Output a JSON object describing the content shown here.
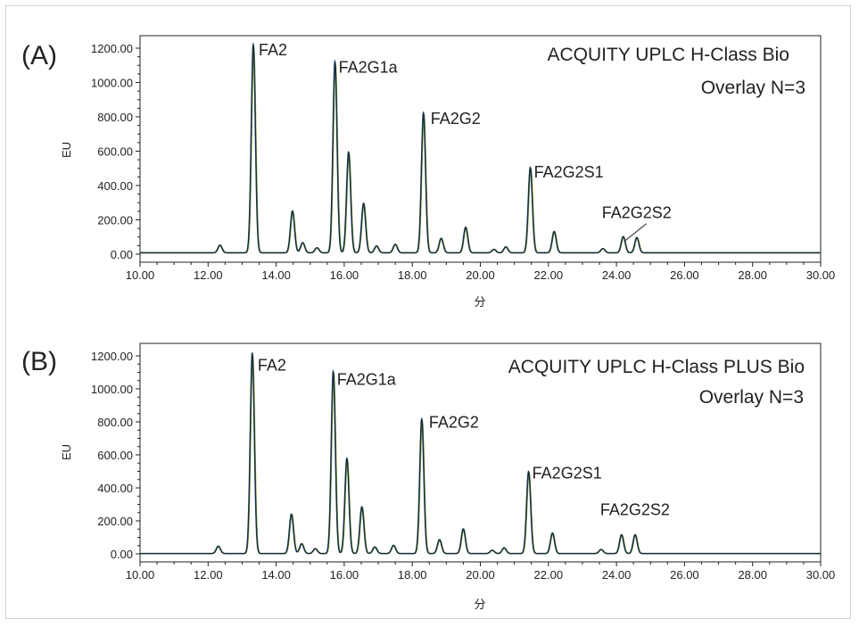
{
  "chart_data": [
    {
      "type": "line",
      "panel_label": "(A)",
      "instrument": "ACQUITY UPLC H-Class Bio",
      "overlay": "Overlay N=3",
      "xlabel": "分",
      "ylabel": "EU",
      "xlim": [
        10.0,
        30.0
      ],
      "ylim": [
        0,
        1200
      ],
      "x_ticks": [
        "10.00",
        "12.00",
        "14.00",
        "16.00",
        "18.00",
        "20.00",
        "22.00",
        "24.00",
        "26.00",
        "28.00",
        "30.00"
      ],
      "y_ticks": [
        "0.00",
        "200.00",
        "400.00",
        "600.00",
        "800.00",
        "1000.00",
        "1200.00"
      ],
      "baseline": 8,
      "peaks": [
        {
          "x": 12.35,
          "y": 45
        },
        {
          "x": 13.33,
          "y": 1220
        },
        {
          "x": 14.48,
          "y": 245
        },
        {
          "x": 14.78,
          "y": 60
        },
        {
          "x": 15.2,
          "y": 30
        },
        {
          "x": 15.73,
          "y": 1120
        },
        {
          "x": 16.13,
          "y": 590
        },
        {
          "x": 16.57,
          "y": 290
        },
        {
          "x": 16.95,
          "y": 40
        },
        {
          "x": 17.5,
          "y": 50
        },
        {
          "x": 18.33,
          "y": 820
        },
        {
          "x": 18.85,
          "y": 85
        },
        {
          "x": 19.57,
          "y": 150
        },
        {
          "x": 20.4,
          "y": 20
        },
        {
          "x": 20.75,
          "y": 35
        },
        {
          "x": 21.47,
          "y": 500
        },
        {
          "x": 22.17,
          "y": 125
        },
        {
          "x": 23.6,
          "y": 25
        },
        {
          "x": 24.2,
          "y": 95
        },
        {
          "x": 24.6,
          "y": 90
        }
      ],
      "annotations": [
        {
          "text": "FA2",
          "x": 13.33,
          "y": 1220
        },
        {
          "text": "FA2G1a",
          "x": 15.73,
          "y": 1120
        },
        {
          "text": "FA2G2",
          "x": 18.33,
          "y": 820
        },
        {
          "text": "FA2G2S1",
          "x": 21.47,
          "y": 500
        },
        {
          "text": "FA2G2S2",
          "x": 24.2,
          "y": 95
        }
      ]
    },
    {
      "type": "line",
      "panel_label": "(B)",
      "instrument": "ACQUITY UPLC H-Class PLUS Bio",
      "overlay": "Overlay N=3",
      "xlabel": "分",
      "ylabel": "EU",
      "xlim": [
        10.0,
        30.0
      ],
      "ylim": [
        0,
        1200
      ],
      "x_ticks": [
        "10.00",
        "12.00",
        "14.00",
        "16.00",
        "18.00",
        "20.00",
        "22.00",
        "24.00",
        "26.00",
        "28.00",
        "30.00"
      ],
      "y_ticks": [
        "0.00",
        "200.00",
        "400.00",
        "600.00",
        "800.00",
        "1000.00",
        "1200.00"
      ],
      "baseline": 2,
      "peaks": [
        {
          "x": 12.3,
          "y": 45
        },
        {
          "x": 13.3,
          "y": 1220
        },
        {
          "x": 14.45,
          "y": 240
        },
        {
          "x": 14.75,
          "y": 60
        },
        {
          "x": 15.15,
          "y": 30
        },
        {
          "x": 15.68,
          "y": 1110
        },
        {
          "x": 16.08,
          "y": 580
        },
        {
          "x": 16.52,
          "y": 285
        },
        {
          "x": 16.9,
          "y": 40
        },
        {
          "x": 17.45,
          "y": 50
        },
        {
          "x": 18.28,
          "y": 820
        },
        {
          "x": 18.8,
          "y": 85
        },
        {
          "x": 19.5,
          "y": 150
        },
        {
          "x": 20.35,
          "y": 20
        },
        {
          "x": 20.7,
          "y": 35
        },
        {
          "x": 21.42,
          "y": 500
        },
        {
          "x": 22.12,
          "y": 125
        },
        {
          "x": 23.55,
          "y": 25
        },
        {
          "x": 24.15,
          "y": 115
        },
        {
          "x": 24.55,
          "y": 115
        }
      ],
      "annotations": [
        {
          "text": "FA2",
          "x": 13.3,
          "y": 1220
        },
        {
          "text": "FA2G1a",
          "x": 15.68,
          "y": 1110
        },
        {
          "text": "FA2G2",
          "x": 18.28,
          "y": 820
        },
        {
          "text": "FA2G2S1",
          "x": 21.42,
          "y": 500
        },
        {
          "text": "FA2G2S2",
          "x": 24.15,
          "y": 115
        }
      ]
    }
  ],
  "colors": {
    "trace_1": "#1a2a3a",
    "trace_2": "#2d6e8e",
    "trace_3": "#8fae3c",
    "axis": "#222222",
    "frame": "#d0d0d0"
  }
}
